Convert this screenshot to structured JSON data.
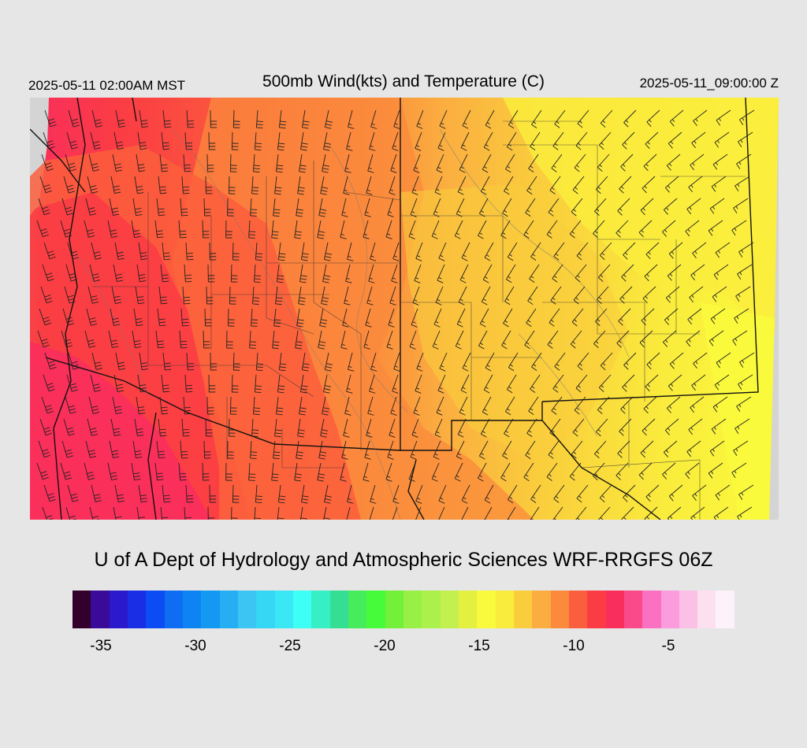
{
  "header": {
    "local_time": "2025-05-11 02:00AM MST",
    "title": "500mb Wind(kts) and Temperature (C)",
    "valid_time": "2025-05-11_09:00:00 Z"
  },
  "credit": "U of A Dept of Hydrology and Atmospheric Sciences WRF-RRGFS 06Z",
  "colorbar": {
    "colors": [
      "#33002e",
      "#3a0a99",
      "#2a1acc",
      "#1a2ee6",
      "#0b4df2",
      "#0e6df2",
      "#0e84f2",
      "#1499f2",
      "#25aef2",
      "#3cc4f2",
      "#36d6f5",
      "#3ae8f5",
      "#3efff5",
      "#36efc4",
      "#34df93",
      "#46ec5c",
      "#46fb3a",
      "#74ef3a",
      "#98f046",
      "#acf04b",
      "#c4f04f",
      "#e4f040",
      "#fafa3c",
      "#faec3c",
      "#facd3c",
      "#fbad40",
      "#fb8a3c",
      "#fb5e3c",
      "#fb3c44",
      "#fa2e5c",
      "#fb4a8a",
      "#fb70c0",
      "#fb9cdc",
      "#fcc0e6",
      "#fde0f0",
      "#fef2fa"
    ],
    "tick_labels": [
      "-35",
      "-30",
      "-25",
      "-20",
      "-15",
      "-10",
      "-5"
    ],
    "tick_values": [
      -35,
      -30,
      -25,
      -20,
      -15,
      -10,
      -5
    ],
    "min": -36.5,
    "max": -1.5
  }
}
